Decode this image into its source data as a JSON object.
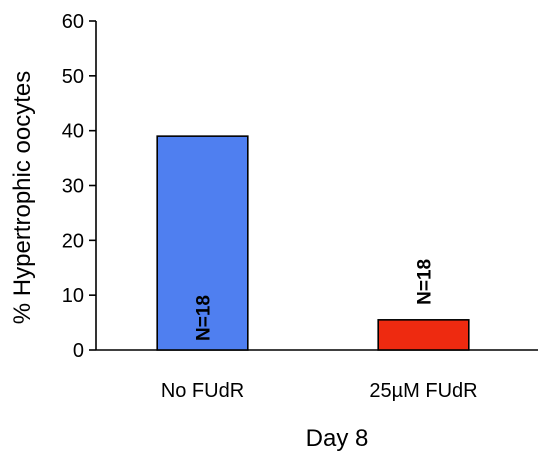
{
  "chart_data": {
    "type": "bar",
    "title": "",
    "xlabel": "Day 8",
    "ylabel": "% Hypertrophic oocytes",
    "ylim": [
      0,
      60
    ],
    "yticks": [
      0,
      10,
      20,
      30,
      40,
      50,
      60
    ],
    "categories": [
      "No FUdR",
      "25µM FUdR"
    ],
    "values": [
      39,
      5.5
    ],
    "bar_labels": [
      "N=18",
      "N=18"
    ],
    "bar_colors": [
      "#4F7FF0",
      "#EE2A10"
    ],
    "grid": false,
    "legend": "none"
  }
}
